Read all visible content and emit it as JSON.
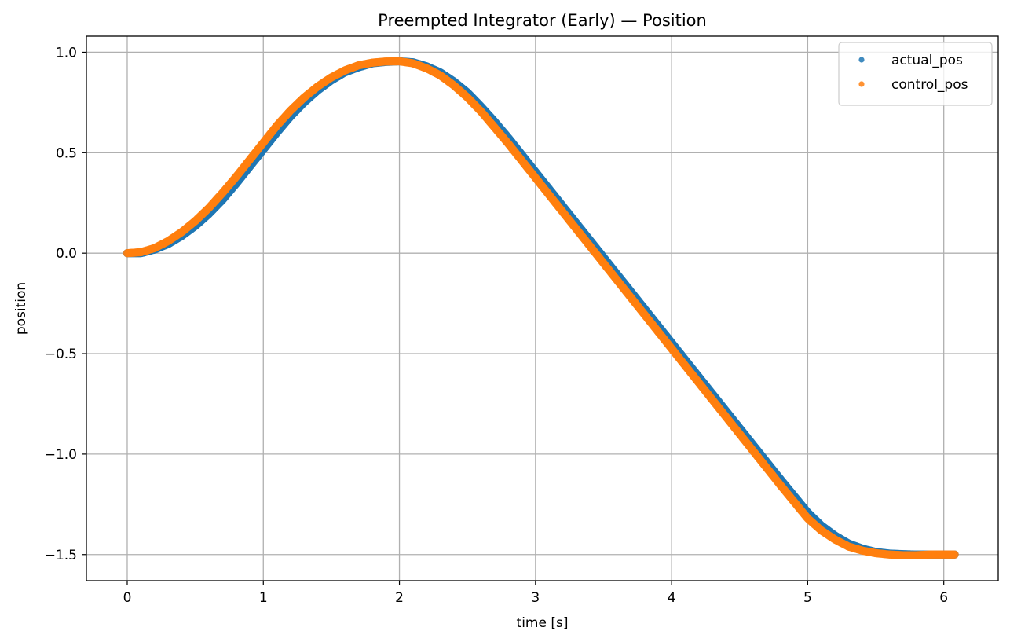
{
  "chart_data": {
    "type": "scatter",
    "title": "Preempted Integrator (Early) — Position",
    "xlabel": "time [s]",
    "ylabel": "position",
    "xlim": [
      -0.3,
      6.4
    ],
    "ylim": [
      -1.63,
      1.08
    ],
    "xticks": [
      0,
      1,
      2,
      3,
      4,
      5,
      6
    ],
    "xtick_labels": [
      "0",
      "1",
      "2",
      "3",
      "4",
      "5",
      "6"
    ],
    "yticks": [
      1.0,
      0.5,
      0.0,
      -0.5,
      -1.0,
      -1.5
    ],
    "ytick_labels": [
      "1.0",
      "0.5",
      "0.0",
      "−0.5",
      "−1.0",
      "−1.5"
    ],
    "grid": true,
    "legend_position": "top-right",
    "series": [
      {
        "name": "actual_pos",
        "color": "#1f77b4",
        "x": [
          0.0,
          0.1,
          0.2,
          0.3,
          0.4,
          0.5,
          0.6,
          0.7,
          0.8,
          0.9,
          1.0,
          1.1,
          1.2,
          1.3,
          1.4,
          1.5,
          1.6,
          1.7,
          1.8,
          1.9,
          2.0,
          2.1,
          2.2,
          2.3,
          2.4,
          2.5,
          2.6,
          2.7,
          2.8,
          2.9,
          3.0,
          3.2,
          3.4,
          3.6,
          3.8,
          4.0,
          4.2,
          4.4,
          4.6,
          4.8,
          5.0,
          5.1,
          5.2,
          5.3,
          5.4,
          5.5,
          5.6,
          5.7,
          5.8,
          5.9,
          6.0,
          6.08
        ],
        "y": [
          0.0,
          0.0,
          0.018,
          0.045,
          0.085,
          0.135,
          0.195,
          0.265,
          0.345,
          0.43,
          0.515,
          0.6,
          0.68,
          0.75,
          0.81,
          0.86,
          0.9,
          0.925,
          0.945,
          0.952,
          0.955,
          0.95,
          0.93,
          0.9,
          0.855,
          0.8,
          0.73,
          0.655,
          0.575,
          0.49,
          0.405,
          0.235,
          0.065,
          -0.105,
          -0.275,
          -0.445,
          -0.615,
          -0.785,
          -0.955,
          -1.125,
          -1.29,
          -1.355,
          -1.405,
          -1.445,
          -1.47,
          -1.487,
          -1.495,
          -1.498,
          -1.5,
          -1.5,
          -1.5,
          -1.5
        ]
      },
      {
        "name": "control_pos",
        "color": "#ff7f0e",
        "x": [
          0.0,
          0.1,
          0.2,
          0.3,
          0.4,
          0.5,
          0.6,
          0.7,
          0.8,
          0.9,
          1.0,
          1.1,
          1.2,
          1.3,
          1.4,
          1.5,
          1.6,
          1.7,
          1.8,
          1.9,
          2.0,
          2.1,
          2.2,
          2.3,
          2.4,
          2.5,
          2.6,
          2.7,
          2.8,
          2.9,
          3.0,
          3.2,
          3.4,
          3.6,
          3.8,
          4.0,
          4.2,
          4.4,
          4.6,
          4.8,
          5.0,
          5.1,
          5.2,
          5.3,
          5.4,
          5.5,
          5.6,
          5.7,
          5.8,
          5.9,
          6.0,
          6.08
        ],
        "y": [
          0.0,
          0.005,
          0.025,
          0.06,
          0.105,
          0.16,
          0.225,
          0.3,
          0.38,
          0.465,
          0.55,
          0.635,
          0.71,
          0.775,
          0.83,
          0.875,
          0.91,
          0.935,
          0.948,
          0.954,
          0.955,
          0.945,
          0.92,
          0.885,
          0.835,
          0.775,
          0.705,
          0.625,
          0.545,
          0.46,
          0.375,
          0.205,
          0.035,
          -0.135,
          -0.305,
          -0.475,
          -0.645,
          -0.815,
          -0.985,
          -1.155,
          -1.32,
          -1.38,
          -1.425,
          -1.46,
          -1.48,
          -1.493,
          -1.5,
          -1.503,
          -1.503,
          -1.5,
          -1.5,
          -1.5
        ]
      }
    ]
  }
}
